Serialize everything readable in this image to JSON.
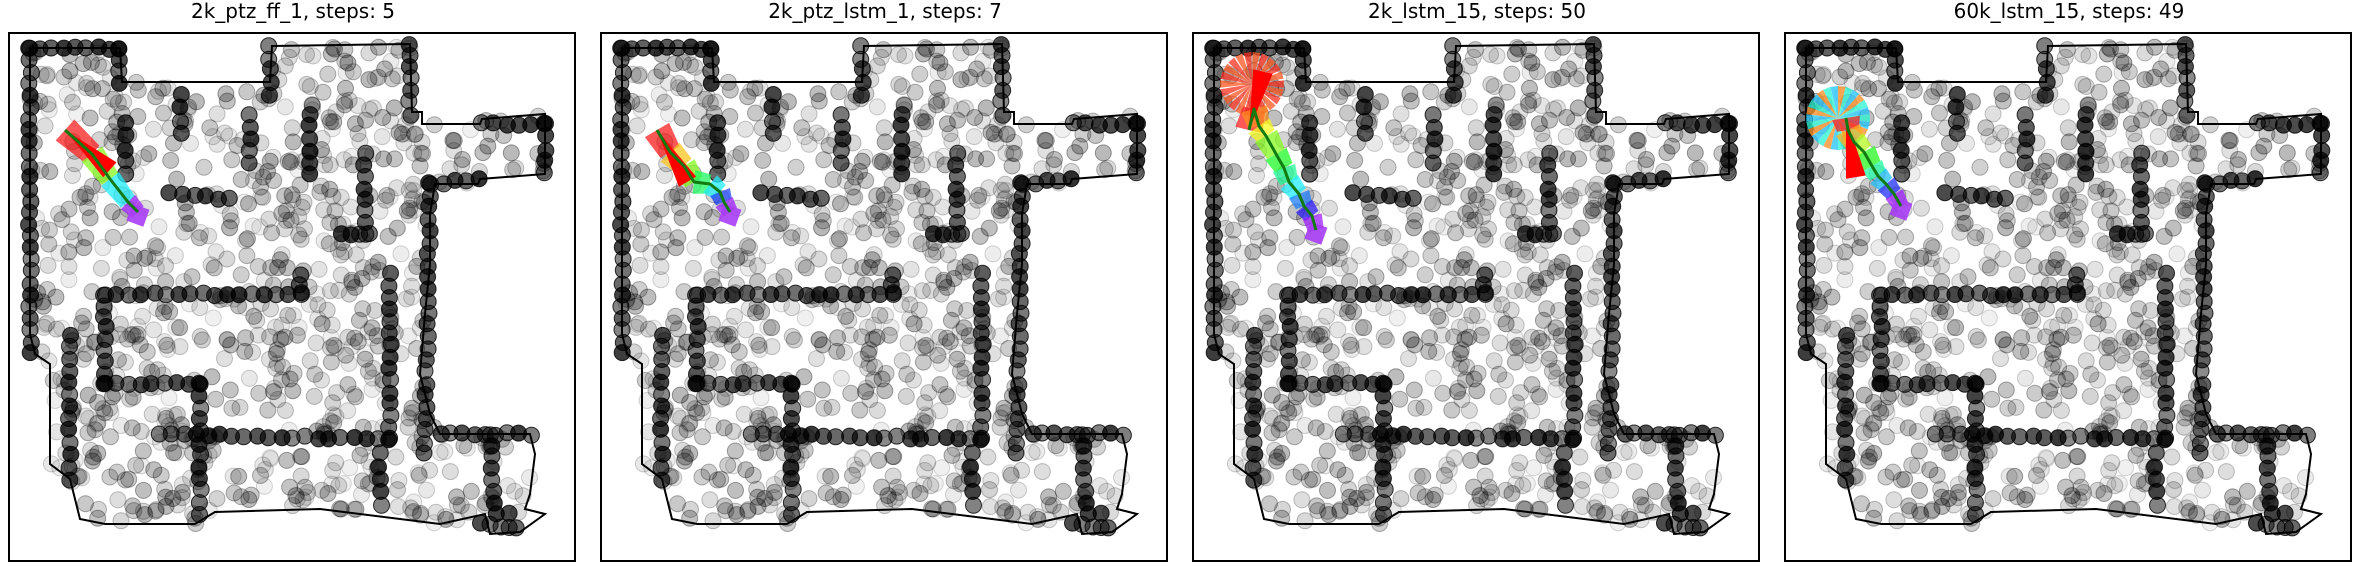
{
  "panels": [
    {
      "title": "2k_ptz_ff_1, steps: 5"
    },
    {
      "title": "2k_ptz_lstm_1, steps: 7"
    },
    {
      "title": "2k_lstm_15, steps: 50"
    },
    {
      "title": "60k_lstm_15, steps: 49"
    }
  ],
  "colors": {
    "obstacle": "#000000",
    "path": "#117a11",
    "start": "#ff0000",
    "boundary": "#000000"
  }
}
